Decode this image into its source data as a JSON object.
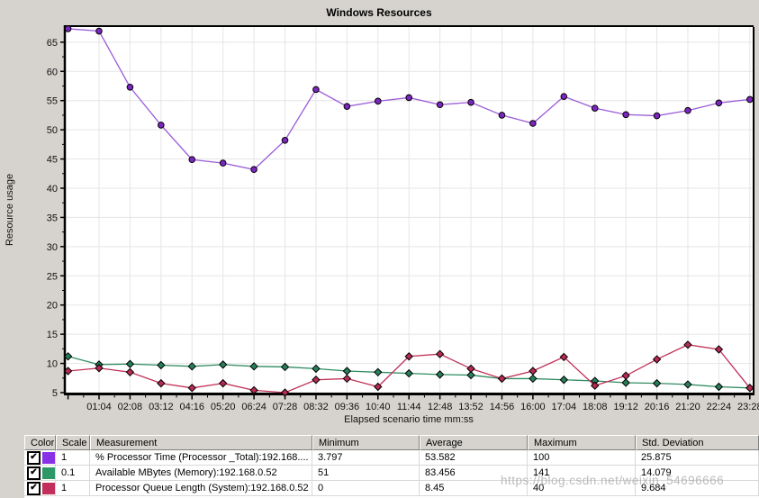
{
  "title": "Windows Resources",
  "watermark": "https://blog.csdn.net/weixin_54696666",
  "colors": {
    "background": "#d6d3ce",
    "plot_background": "#ffffff",
    "gridline": "#e5e5e5",
    "axis": "#000000",
    "series_purple_line": "#9a5cd8",
    "series_purple_marker": "#7c26c0",
    "series_green_line": "#2f8c62",
    "series_green_marker": "#27805a",
    "series_red_line": "#c03058",
    "series_red_marker": "#b52b52",
    "swatch_purple": "#8832e8",
    "swatch_green": "#2e9966",
    "swatch_red": "#c22f5c"
  },
  "chart_data": {
    "type": "line",
    "title": "Windows Resources",
    "xlabel": "Elapsed scenario time mm:ss",
    "ylabel": "Resource usage",
    "ylim": [
      4.9,
      67.6
    ],
    "grid": true,
    "legend_position": "table-below",
    "y_ticks": [
      5,
      10,
      15,
      20,
      25,
      30,
      35,
      40,
      45,
      50,
      55,
      60,
      65
    ],
    "x_tick_labels": [
      "01:04",
      "02:08",
      "03:12",
      "04:16",
      "05:20",
      "06:24",
      "07:28",
      "08:32",
      "09:36",
      "10:40",
      "11:44",
      "12:48",
      "13:52",
      "14:56",
      "16:00",
      "17:04",
      "18:08",
      "19:12",
      "20:16",
      "21:20",
      "22:24",
      "23:28"
    ],
    "x": [
      "00:00",
      "01:04",
      "02:08",
      "03:12",
      "04:16",
      "05:20",
      "06:24",
      "07:28",
      "08:32",
      "09:36",
      "10:40",
      "11:44",
      "12:48",
      "13:52",
      "14:56",
      "16:00",
      "17:04",
      "18:08",
      "19:12",
      "20:16",
      "21:20",
      "22:24",
      "23:28"
    ],
    "series": [
      {
        "name": "% Processor Time (Processor _Total):192.168....",
        "marker": "circle",
        "values": [
          67.3,
          66.9,
          57.3,
          50.8,
          44.9,
          44.3,
          43.2,
          48.2,
          56.9,
          54.0,
          54.9,
          55.5,
          54.3,
          54.7,
          52.5,
          51.1,
          55.7,
          53.7,
          52.6,
          52.4,
          53.3,
          54.6,
          55.2
        ]
      },
      {
        "name": "Available MBytes (Memory):192.168.0.52 (scale 0.1)",
        "marker": "diamond",
        "values": [
          11.2,
          9.8,
          9.9,
          9.7,
          9.5,
          9.8,
          9.5,
          9.4,
          9.1,
          8.7,
          8.5,
          8.3,
          8.1,
          8.0,
          7.4,
          7.4,
          7.2,
          7.0,
          6.7,
          6.6,
          6.4,
          6.0,
          5.8
        ]
      },
      {
        "name": "Processor Queue Length (System):192.168.0.52",
        "marker": "diamond",
        "values": [
          8.7,
          9.2,
          8.5,
          6.6,
          5.8,
          6.6,
          5.4,
          5.0,
          7.2,
          7.4,
          6.0,
          11.2,
          11.6,
          9.1,
          7.4,
          8.7,
          11.1,
          6.2,
          7.9,
          10.7,
          13.2,
          12.4,
          5.8
        ]
      }
    ]
  },
  "table": {
    "headers": [
      "Color",
      "Scale",
      "Measurement",
      "Minimum",
      "Average",
      "Maximum",
      "Std. Deviation"
    ],
    "rows": [
      {
        "checked": true,
        "color": "#8832e8",
        "scale": "1",
        "measurement": "% Processor Time (Processor _Total):192.168....",
        "minimum": "3.797",
        "average": "53.582",
        "maximum": "100",
        "std_deviation": "25.875"
      },
      {
        "checked": true,
        "color": "#2e9966",
        "scale": "0.1",
        "measurement": "Available MBytes (Memory):192.168.0.52",
        "minimum": "51",
        "average": "83.456",
        "maximum": "141",
        "std_deviation": "14.079"
      },
      {
        "checked": true,
        "color": "#c22f5c",
        "scale": "1",
        "measurement": "Processor Queue Length (System):192.168.0.52",
        "minimum": "0",
        "average": "8.45",
        "maximum": "40",
        "std_deviation": "9.684"
      }
    ]
  }
}
